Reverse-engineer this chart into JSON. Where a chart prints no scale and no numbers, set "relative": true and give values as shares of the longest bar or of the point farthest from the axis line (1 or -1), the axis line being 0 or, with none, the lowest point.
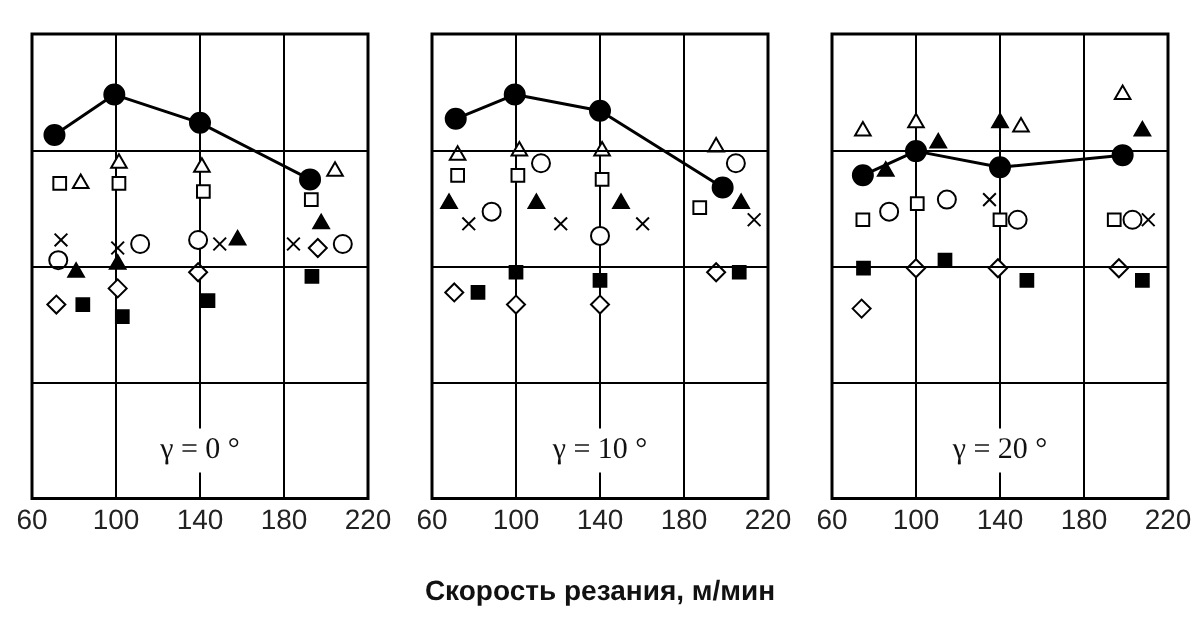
{
  "chart_data": [
    {
      "type": "scatter",
      "relative": true,
      "xlim": [
        60,
        220
      ],
      "xticks": [
        60,
        100,
        140,
        180,
        220
      ],
      "grid": true,
      "legend": false,
      "tick_labels": "x",
      "annotations": [
        "γ = 0 °"
      ],
      "series": [
        {
          "type": "line",
          "marker": "circle",
          "color": "#000000",
          "x": [
            70.7,
            99.2,
            140,
            192.4
          ],
          "values": [
            0.9,
            1.0,
            0.93,
            0.79
          ]
        },
        {
          "marker": "triangle",
          "color": "#ffffff",
          "x": [
            83.2,
            101.4,
            140.9,
            204.3
          ],
          "values": [
            0.78,
            0.83,
            0.82,
            0.81
          ]
        },
        {
          "marker": "square",
          "color": "#ffffff",
          "x": [
            73.2,
            101.4,
            141.6,
            193
          ],
          "values": [
            0.78,
            0.78,
            0.76,
            0.74
          ]
        },
        {
          "marker": "cross",
          "color": "#000000",
          "x": [
            73.8,
            100.8,
            149.4,
            184.5
          ],
          "values": [
            0.64,
            0.62,
            0.63,
            0.63
          ]
        },
        {
          "marker": "circle",
          "color": "#ffffff",
          "x": [
            72.5,
            111.5,
            139.1,
            208
          ],
          "values": [
            0.59,
            0.63,
            0.64,
            0.63
          ]
        },
        {
          "marker": "triangle",
          "color": "#000000",
          "x": [
            81,
            100.8,
            157.9,
            197.7
          ],
          "values": [
            0.56,
            0.58,
            0.64,
            0.68
          ]
        },
        {
          "marker": "diamond",
          "color": "#ffffff",
          "x": [
            71.6,
            100.8,
            139.1,
            196.1
          ],
          "values": [
            0.48,
            0.52,
            0.56,
            0.62
          ]
        },
        {
          "marker": "square",
          "color": "#000000",
          "x": [
            84.2,
            103,
            143.8,
            193.3
          ],
          "values": [
            0.48,
            0.45,
            0.49,
            0.55
          ]
        }
      ]
    },
    {
      "type": "scatter",
      "relative": true,
      "xlim": [
        60,
        220
      ],
      "xticks": [
        60,
        100,
        140,
        180,
        220
      ],
      "grid": true,
      "legend": false,
      "tick_labels": "x",
      "xlabel": "Скорость резания, м/мин",
      "annotations": [
        "γ = 10 °"
      ],
      "series": [
        {
          "type": "line",
          "marker": "circle",
          "color": "#000000",
          "x": [
            71.3,
            99.4,
            140,
            198.4
          ],
          "values": [
            0.94,
            1.0,
            0.96,
            0.77
          ]
        },
        {
          "marker": "triangle",
          "color": "#ffffff",
          "x": [
            72.2,
            101.6,
            141,
            195.3
          ],
          "values": [
            0.85,
            0.86,
            0.86,
            0.87
          ]
        },
        {
          "marker": "square",
          "color": "#ffffff",
          "x": [
            72.2,
            100.9,
            141,
            187.5
          ],
          "values": [
            0.8,
            0.8,
            0.79,
            0.72
          ]
        },
        {
          "marker": "circle",
          "color": "#ffffff",
          "x": [
            88.4,
            111.9,
            140,
            204.7
          ],
          "values": [
            0.71,
            0.83,
            0.65,
            0.83
          ]
        },
        {
          "marker": "triangle",
          "color": "#000000",
          "x": [
            68.1,
            109.7,
            150,
            207.2
          ],
          "values": [
            0.73,
            0.73,
            0.73,
            0.73
          ]
        },
        {
          "marker": "cross",
          "color": "#000000",
          "x": [
            77.5,
            121.3,
            160.3,
            213.4
          ],
          "values": [
            0.68,
            0.68,
            0.68,
            0.69
          ]
        },
        {
          "marker": "diamond",
          "color": "#ffffff",
          "x": [
            70.6,
            100,
            140,
            195.3
          ],
          "values": [
            0.51,
            0.48,
            0.48,
            0.56
          ]
        },
        {
          "marker": "square",
          "color": "#000000",
          "x": [
            81.9,
            100,
            140,
            206.3
          ],
          "values": [
            0.51,
            0.56,
            0.54,
            0.56
          ]
        }
      ]
    },
    {
      "type": "scatter",
      "relative": true,
      "xlim": [
        60,
        220
      ],
      "xticks": [
        60,
        100,
        140,
        180,
        220
      ],
      "grid": true,
      "legend": false,
      "tick_labels": "x",
      "annotations": [
        "γ = 20 °"
      ],
      "series": [
        {
          "type": "line",
          "marker": "circle",
          "color": "#000000",
          "x": [
            74.7,
            100,
            140,
            198.4
          ],
          "values": [
            0.8,
            0.86,
            0.82,
            0.85
          ]
        },
        {
          "marker": "triangle",
          "color": "#ffffff",
          "x": [
            74.7,
            100,
            150,
            198.4
          ],
          "values": [
            0.91,
            0.93,
            0.92,
            1.0
          ]
        },
        {
          "marker": "triangle",
          "color": "#000000",
          "x": [
            85.6,
            110.6,
            140,
            207.8
          ],
          "values": [
            0.81,
            0.88,
            0.93,
            0.91
          ]
        },
        {
          "marker": "square",
          "color": "#ffffff",
          "x": [
            74.7,
            100.6,
            140,
            194.4
          ],
          "values": [
            0.69,
            0.73,
            0.69,
            0.69
          ]
        },
        {
          "marker": "circle",
          "color": "#ffffff",
          "x": [
            87.2,
            114.7,
            148.4,
            203.1
          ],
          "values": [
            0.71,
            0.74,
            0.69,
            0.69
          ]
        },
        {
          "marker": "cross",
          "color": "#000000",
          "x": [
            135,
            210.6
          ],
          "values": [
            0.74,
            0.69
          ]
        },
        {
          "marker": "square",
          "color": "#000000",
          "x": [
            75,
            113.8,
            152.8,
            207.8
          ],
          "values": [
            0.57,
            0.59,
            0.54,
            0.54
          ]
        },
        {
          "marker": "diamond",
          "color": "#ffffff",
          "x": [
            74.1,
            100,
            139,
            196.6
          ],
          "values": [
            0.47,
            0.57,
            0.57,
            0.57
          ]
        }
      ]
    }
  ]
}
